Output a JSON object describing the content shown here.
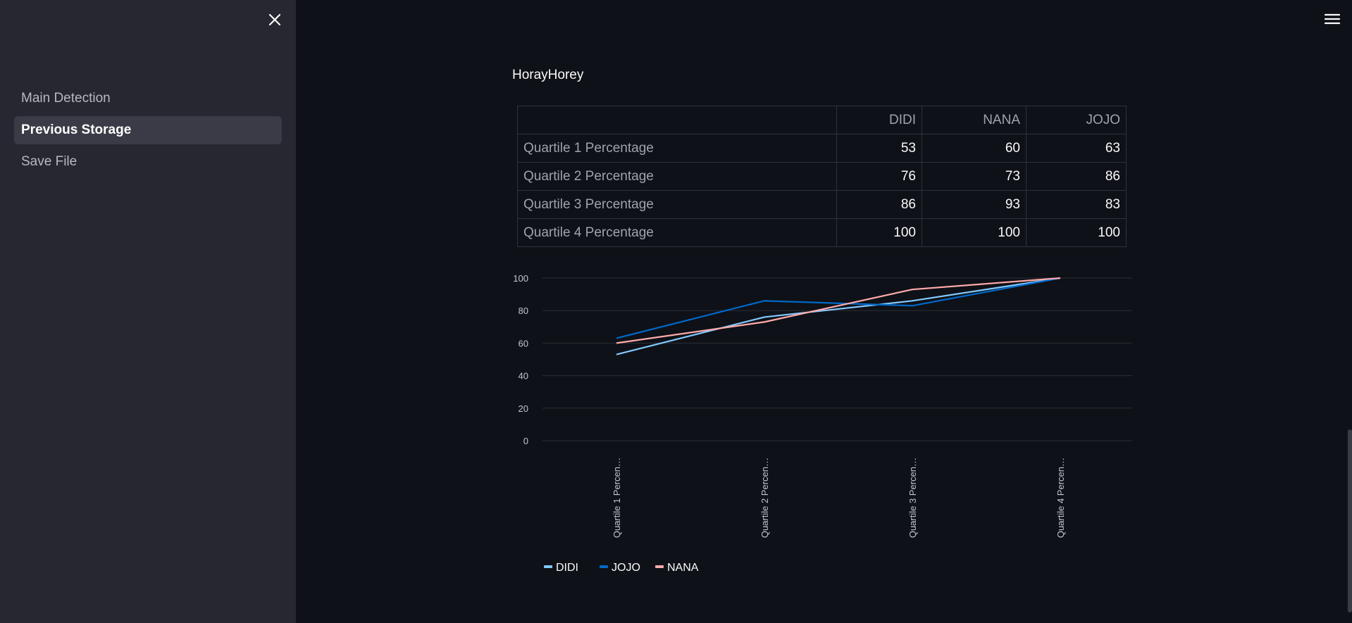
{
  "sidebar": {
    "items": [
      {
        "label": "Main Detection",
        "active": false
      },
      {
        "label": "Previous Storage",
        "active": true
      },
      {
        "label": "Save File",
        "active": false
      }
    ]
  },
  "main": {
    "title": "HorayHorey",
    "table": {
      "columns": [
        "",
        "DIDI",
        "NANA",
        "JOJO"
      ],
      "rows": [
        {
          "label": "Quartile 1 Percentage",
          "values": [
            "53",
            "60",
            "63"
          ]
        },
        {
          "label": "Quartile 2 Percentage",
          "values": [
            "76",
            "73",
            "86"
          ]
        },
        {
          "label": "Quartile 3 Percentage",
          "values": [
            "86",
            "93",
            "83"
          ]
        },
        {
          "label": "Quartile 4 Percentage",
          "values": [
            "100",
            "100",
            "100"
          ]
        }
      ]
    }
  },
  "chart_data": {
    "type": "line",
    "categories": [
      "Quartile 1 Percen…",
      "Quartile 2 Percen…",
      "Quartile 3 Percen…",
      "Quartile 4 Percen…"
    ],
    "series": [
      {
        "name": "DIDI",
        "values": [
          53,
          76,
          86,
          100
        ],
        "color": "#83c9ff"
      },
      {
        "name": "JOJO",
        "values": [
          63,
          86,
          83,
          100
        ],
        "color": "#0068c9"
      },
      {
        "name": "NANA",
        "values": [
          60,
          73,
          93,
          100
        ],
        "color": "#ffabab"
      }
    ],
    "yticks": [
      0,
      20,
      40,
      60,
      80,
      100
    ],
    "ylim": [
      0,
      100
    ],
    "grid": true,
    "legend": "bottom-left"
  },
  "colors": {
    "background": "#0e1117",
    "sidebar": "#262730"
  },
  "icons": {
    "close": "close-icon",
    "menu": "hamburger-menu-icon"
  }
}
